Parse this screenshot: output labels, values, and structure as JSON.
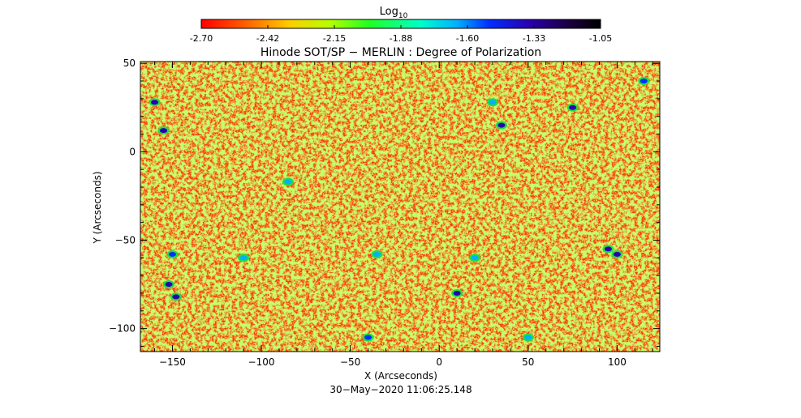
{
  "colorbar": {
    "title": "Log",
    "title_subscript": "10",
    "ticks": [
      "-2.70",
      "-2.42",
      "-2.15",
      "-1.88",
      "-1.60",
      "-1.33",
      "-1.05"
    ],
    "range": [
      -2.7,
      -1.05
    ],
    "colormap": "rainbow reversed (red → orange → yellow → green → cyan → blue → black)"
  },
  "chart_data": {
    "type": "heatmap",
    "title": "Hinode SOT/SP − MERLIN : Degree of Polarization",
    "xlabel": "X (Arcseconds)",
    "ylabel": "Y (Arcseconds)",
    "xlim": [
      -168,
      124
    ],
    "ylim": [
      -113,
      51
    ],
    "xticks": [
      -150,
      -100,
      -50,
      0,
      50,
      100
    ],
    "yticks": [
      -100,
      -50,
      0,
      50
    ],
    "x_tick_labels": [
      "−150",
      "−100",
      "−50",
      "0",
      "50",
      "100"
    ],
    "y_tick_labels": [
      "−100",
      "−50",
      "0",
      "50"
    ],
    "value_scale": "log10",
    "dominant_value": -2.6,
    "colors": {
      "background_field": "#f23a14",
      "low": "#ff0000",
      "mid": "#ffdd00",
      "high_green": "#22dd44",
      "high_cyan": "#00ffff",
      "highest": "#0a0aaa"
    },
    "features": [
      {
        "x": -160,
        "y": 28,
        "value": -1.5
      },
      {
        "x": -155,
        "y": 12,
        "value": -1.45
      },
      {
        "x": -152,
        "y": -75,
        "value": -1.4
      },
      {
        "x": -148,
        "y": -82,
        "value": -1.35
      },
      {
        "x": -150,
        "y": -58,
        "value": -1.6
      },
      {
        "x": -110,
        "y": -60,
        "value": -1.7
      },
      {
        "x": -85,
        "y": -17,
        "value": -1.7
      },
      {
        "x": -35,
        "y": -58,
        "value": -1.65
      },
      {
        "x": -40,
        "y": -105,
        "value": -1.55
      },
      {
        "x": 10,
        "y": -80,
        "value": -1.4
      },
      {
        "x": 20,
        "y": -60,
        "value": -1.65
      },
      {
        "x": 30,
        "y": 28,
        "value": -1.75
      },
      {
        "x": 35,
        "y": 15,
        "value": -1.45
      },
      {
        "x": 75,
        "y": 25,
        "value": -1.45
      },
      {
        "x": 95,
        "y": -55,
        "value": -1.4
      },
      {
        "x": 100,
        "y": -58,
        "value": -1.5
      },
      {
        "x": 115,
        "y": 40,
        "value": -1.55
      },
      {
        "x": 50,
        "y": -105,
        "value": -1.65
      }
    ]
  },
  "footer": {
    "timestamp": "30−May−2020 11:06:25.148"
  }
}
